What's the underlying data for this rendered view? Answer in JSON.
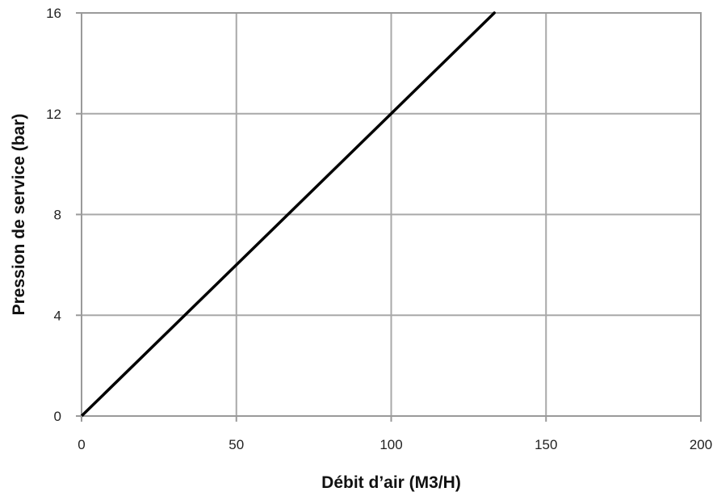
{
  "chart_data": {
    "type": "line",
    "title": "",
    "xlabel": "Débit d’air (M3/H)",
    "ylabel": "Pression de service (bar)",
    "xlim": [
      0,
      200
    ],
    "ylim": [
      0,
      16
    ],
    "x_ticks": [
      0,
      50,
      100,
      150,
      200
    ],
    "y_ticks": [
      0,
      4,
      8,
      12,
      16
    ],
    "x_tick_labels": [
      "0",
      "50",
      "100",
      "150",
      "200"
    ],
    "y_tick_labels": [
      "0",
      "4",
      "8",
      "12",
      "16"
    ],
    "grid": true,
    "series": [
      {
        "color": "#000000",
        "x": [
          0,
          133.3
        ],
        "y": [
          0,
          16
        ]
      }
    ]
  }
}
